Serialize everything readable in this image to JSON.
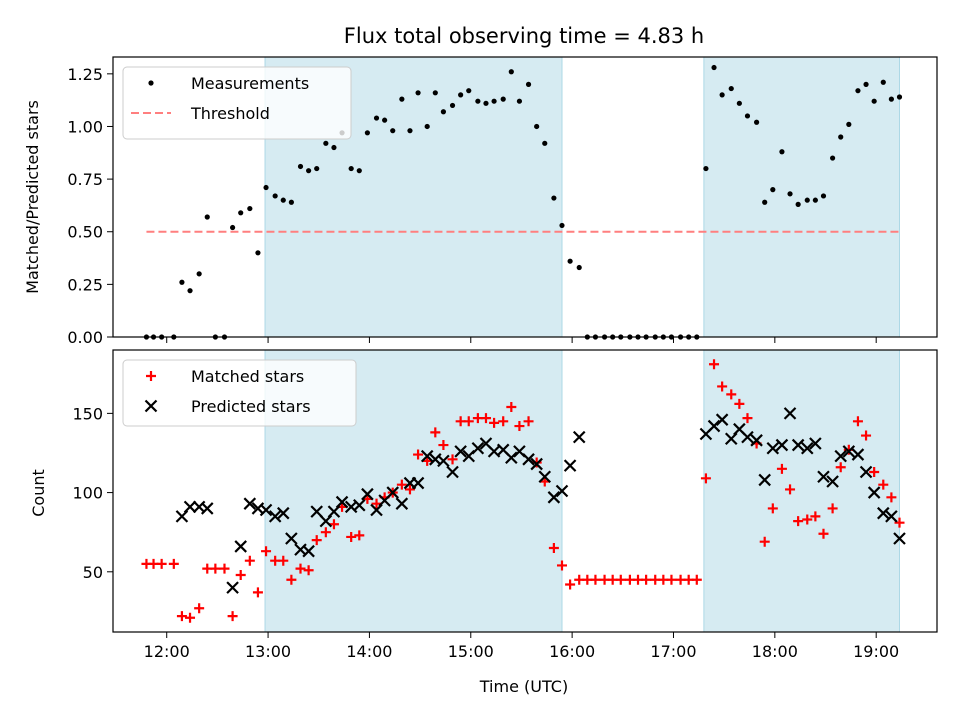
{
  "chart_data": [
    {
      "type": "scatter",
      "title": "Flux total observing time = 4.83 h",
      "ylabel": "Matched/Predicted stars",
      "xlabel": "",
      "xlim": [
        11.47,
        19.6
      ],
      "ylim": [
        0,
        1.33
      ],
      "y_ticks": [
        0,
        0.25,
        0.5,
        0.75,
        1.0,
        1.25
      ],
      "y_tick_labels": [
        "0.00",
        "0.25",
        "0.50",
        "0.75",
        "1.00",
        "1.25"
      ],
      "x_ticks": [
        12,
        13,
        14,
        15,
        16,
        17,
        18,
        19
      ],
      "shaded_intervals": [
        [
          12.97,
          15.9
        ],
        [
          17.3,
          19.23
        ]
      ],
      "shade_color": "#add8e6",
      "legend_position": "upper left",
      "series": [
        {
          "name": "Measurements",
          "marker": "dot",
          "color": "#000000",
          "points": [
            [
              11.8,
              0.0
            ],
            [
              11.87,
              0.0
            ],
            [
              11.95,
              0.0
            ],
            [
              12.07,
              0.0
            ],
            [
              12.15,
              0.26
            ],
            [
              12.23,
              0.22
            ],
            [
              12.32,
              0.3
            ],
            [
              12.4,
              0.57
            ],
            [
              12.48,
              0.0
            ],
            [
              12.57,
              0.0
            ],
            [
              12.65,
              0.52
            ],
            [
              12.73,
              0.59
            ],
            [
              12.82,
              0.61
            ],
            [
              12.9,
              0.4
            ],
            [
              12.98,
              0.71
            ],
            [
              13.07,
              0.67
            ],
            [
              13.15,
              0.65
            ],
            [
              13.23,
              0.64
            ],
            [
              13.32,
              0.81
            ],
            [
              13.4,
              0.79
            ],
            [
              13.48,
              0.8
            ],
            [
              13.57,
              0.92
            ],
            [
              13.65,
              0.9
            ],
            [
              13.73,
              0.97
            ],
            [
              13.82,
              0.8
            ],
            [
              13.9,
              0.79
            ],
            [
              13.98,
              0.97
            ],
            [
              14.07,
              1.04
            ],
            [
              14.15,
              1.03
            ],
            [
              14.23,
              0.98
            ],
            [
              14.32,
              1.13
            ],
            [
              14.4,
              0.98
            ],
            [
              14.48,
              1.16
            ],
            [
              14.57,
              1.0
            ],
            [
              14.65,
              1.16
            ],
            [
              14.73,
              1.07
            ],
            [
              14.82,
              1.1
            ],
            [
              14.9,
              1.15
            ],
            [
              14.98,
              1.17
            ],
            [
              15.07,
              1.12
            ],
            [
              15.15,
              1.11
            ],
            [
              15.23,
              1.12
            ],
            [
              15.32,
              1.13
            ],
            [
              15.4,
              1.26
            ],
            [
              15.48,
              1.12
            ],
            [
              15.57,
              1.2
            ],
            [
              15.65,
              1.0
            ],
            [
              15.73,
              0.92
            ],
            [
              15.82,
              0.66
            ],
            [
              15.9,
              0.53
            ],
            [
              15.98,
              0.36
            ],
            [
              16.07,
              0.33
            ],
            [
              16.15,
              0.0
            ],
            [
              16.23,
              0.0
            ],
            [
              16.32,
              0.0
            ],
            [
              16.4,
              0.0
            ],
            [
              16.48,
              0.0
            ],
            [
              16.57,
              0.0
            ],
            [
              16.65,
              0.0
            ],
            [
              16.73,
              0.0
            ],
            [
              16.82,
              0.0
            ],
            [
              16.9,
              0.0
            ],
            [
              16.98,
              0.0
            ],
            [
              17.07,
              0.0
            ],
            [
              17.15,
              0.0
            ],
            [
              17.23,
              0.0
            ],
            [
              17.32,
              0.8
            ],
            [
              17.4,
              1.28
            ],
            [
              17.48,
              1.15
            ],
            [
              17.57,
              1.18
            ],
            [
              17.65,
              1.11
            ],
            [
              17.73,
              1.05
            ],
            [
              17.82,
              1.02
            ],
            [
              17.9,
              0.64
            ],
            [
              17.98,
              0.7
            ],
            [
              18.07,
              0.88
            ],
            [
              18.15,
              0.68
            ],
            [
              18.23,
              0.63
            ],
            [
              18.32,
              0.65
            ],
            [
              18.4,
              0.65
            ],
            [
              18.48,
              0.67
            ],
            [
              18.57,
              0.85
            ],
            [
              18.65,
              0.95
            ],
            [
              18.73,
              1.01
            ],
            [
              18.82,
              1.17
            ],
            [
              18.9,
              1.2
            ],
            [
              18.98,
              1.12
            ],
            [
              19.07,
              1.21
            ],
            [
              19.15,
              1.13
            ],
            [
              19.23,
              1.14
            ]
          ]
        },
        {
          "name": "Threshold",
          "marker": "dashed-line",
          "color": "#ff7f7f",
          "points": [
            [
              11.8,
              0.5
            ],
            [
              19.25,
              0.5
            ]
          ]
        }
      ]
    },
    {
      "type": "scatter",
      "title": "",
      "ylabel": "Count",
      "xlabel": "Time (UTC)",
      "xlim": [
        11.47,
        19.6
      ],
      "ylim": [
        12,
        190
      ],
      "y_ticks": [
        50,
        100,
        150
      ],
      "y_tick_labels": [
        "50",
        "100",
        "150"
      ],
      "x_ticks": [
        12,
        13,
        14,
        15,
        16,
        17,
        18,
        19
      ],
      "x_tick_labels": [
        "12:00",
        "13:00",
        "14:00",
        "15:00",
        "16:00",
        "17:00",
        "18:00",
        "19:00"
      ],
      "shaded_intervals": [
        [
          12.97,
          15.9
        ],
        [
          17.3,
          19.23
        ]
      ],
      "shade_color": "#add8e6",
      "legend_position": "upper left",
      "series": [
        {
          "name": "Matched stars",
          "marker": "plus",
          "color": "#ff0000",
          "points": [
            [
              11.8,
              55
            ],
            [
              11.87,
              55
            ],
            [
              11.95,
              55
            ],
            [
              12.07,
              55
            ],
            [
              12.15,
              22
            ],
            [
              12.23,
              21
            ],
            [
              12.32,
              27
            ],
            [
              12.4,
              52
            ],
            [
              12.48,
              52
            ],
            [
              12.57,
              52
            ],
            [
              12.65,
              22
            ],
            [
              12.73,
              48
            ],
            [
              12.82,
              57
            ],
            [
              12.9,
              37
            ],
            [
              12.98,
              63
            ],
            [
              13.07,
              57
            ],
            [
              13.15,
              57
            ],
            [
              13.23,
              45
            ],
            [
              13.32,
              52
            ],
            [
              13.4,
              51
            ],
            [
              13.48,
              70
            ],
            [
              13.57,
              75
            ],
            [
              13.65,
              80
            ],
            [
              13.73,
              91
            ],
            [
              13.82,
              72
            ],
            [
              13.9,
              73
            ],
            [
              13.98,
              96
            ],
            [
              14.07,
              93
            ],
            [
              14.15,
              97
            ],
            [
              14.23,
              100
            ],
            [
              14.32,
              105
            ],
            [
              14.4,
              102
            ],
            [
              14.48,
              124
            ],
            [
              14.57,
              120
            ],
            [
              14.65,
              138
            ],
            [
              14.73,
              130
            ],
            [
              14.82,
              121
            ],
            [
              14.9,
              145
            ],
            [
              14.98,
              145
            ],
            [
              15.07,
              147
            ],
            [
              15.15,
              147
            ],
            [
              15.23,
              144
            ],
            [
              15.32,
              145
            ],
            [
              15.4,
              154
            ],
            [
              15.48,
              142
            ],
            [
              15.57,
              145
            ],
            [
              15.65,
              119
            ],
            [
              15.73,
              107
            ],
            [
              15.82,
              65
            ],
            [
              15.9,
              54
            ],
            [
              15.98,
              42
            ],
            [
              16.07,
              45
            ],
            [
              16.15,
              45
            ],
            [
              16.23,
              45
            ],
            [
              16.32,
              45
            ],
            [
              16.4,
              45
            ],
            [
              16.48,
              45
            ],
            [
              16.57,
              45
            ],
            [
              16.65,
              45
            ],
            [
              16.73,
              45
            ],
            [
              16.82,
              45
            ],
            [
              16.9,
              45
            ],
            [
              16.98,
              45
            ],
            [
              17.07,
              45
            ],
            [
              17.15,
              45
            ],
            [
              17.23,
              45
            ],
            [
              17.32,
              109
            ],
            [
              17.4,
              181
            ],
            [
              17.48,
              167
            ],
            [
              17.57,
              162
            ],
            [
              17.65,
              156
            ],
            [
              17.73,
              147
            ],
            [
              17.82,
              131
            ],
            [
              17.9,
              69
            ],
            [
              17.98,
              90
            ],
            [
              18.07,
              115
            ],
            [
              18.15,
              102
            ],
            [
              18.23,
              82
            ],
            [
              18.32,
              83
            ],
            [
              18.4,
              85
            ],
            [
              18.48,
              74
            ],
            [
              18.57,
              90
            ],
            [
              18.65,
              116
            ],
            [
              18.73,
              127
            ],
            [
              18.82,
              145
            ],
            [
              18.9,
              136
            ],
            [
              18.98,
              113
            ],
            [
              19.07,
              105
            ],
            [
              19.15,
              97
            ],
            [
              19.23,
              81
            ]
          ]
        },
        {
          "name": "Predicted stars",
          "marker": "x",
          "color": "#000000",
          "points": [
            [
              12.15,
              85
            ],
            [
              12.23,
              91
            ],
            [
              12.32,
              91
            ],
            [
              12.4,
              90
            ],
            [
              12.65,
              40
            ],
            [
              12.73,
              66
            ],
            [
              12.82,
              93
            ],
            [
              12.9,
              90
            ],
            [
              12.98,
              89
            ],
            [
              13.07,
              85
            ],
            [
              13.15,
              87
            ],
            [
              13.23,
              71
            ],
            [
              13.32,
              64
            ],
            [
              13.4,
              63
            ],
            [
              13.48,
              88
            ],
            [
              13.57,
              82
            ],
            [
              13.65,
              88
            ],
            [
              13.73,
              94
            ],
            [
              13.82,
              91
            ],
            [
              13.9,
              92
            ],
            [
              13.98,
              99
            ],
            [
              14.07,
              89
            ],
            [
              14.15,
              95
            ],
            [
              14.23,
              100
            ],
            [
              14.32,
              93
            ],
            [
              14.4,
              106
            ],
            [
              14.48,
              106
            ],
            [
              14.57,
              123
            ],
            [
              14.65,
              121
            ],
            [
              14.73,
              120
            ],
            [
              14.82,
              113
            ],
            [
              14.9,
              126
            ],
            [
              14.98,
              123
            ],
            [
              15.07,
              128
            ],
            [
              15.15,
              131
            ],
            [
              15.23,
              126
            ],
            [
              15.32,
              127
            ],
            [
              15.4,
              122
            ],
            [
              15.48,
              126
            ],
            [
              15.57,
              121
            ],
            [
              15.65,
              118
            ],
            [
              15.73,
              110
            ],
            [
              15.82,
              97
            ],
            [
              15.9,
              101
            ],
            [
              15.98,
              117
            ],
            [
              16.07,
              135
            ],
            [
              17.32,
              137
            ],
            [
              17.4,
              142
            ],
            [
              17.48,
              146
            ],
            [
              17.57,
              134
            ],
            [
              17.65,
              140
            ],
            [
              17.73,
              135
            ],
            [
              17.82,
              133
            ],
            [
              17.9,
              108
            ],
            [
              17.98,
              128
            ],
            [
              18.07,
              130
            ],
            [
              18.15,
              150
            ],
            [
              18.23,
              130
            ],
            [
              18.32,
              128
            ],
            [
              18.4,
              131
            ],
            [
              18.48,
              110
            ],
            [
              18.57,
              107
            ],
            [
              18.65,
              123
            ],
            [
              18.73,
              126
            ],
            [
              18.82,
              124
            ],
            [
              18.9,
              113
            ],
            [
              18.98,
              100
            ],
            [
              19.07,
              87
            ],
            [
              19.15,
              85
            ],
            [
              19.23,
              71
            ]
          ]
        }
      ]
    }
  ]
}
